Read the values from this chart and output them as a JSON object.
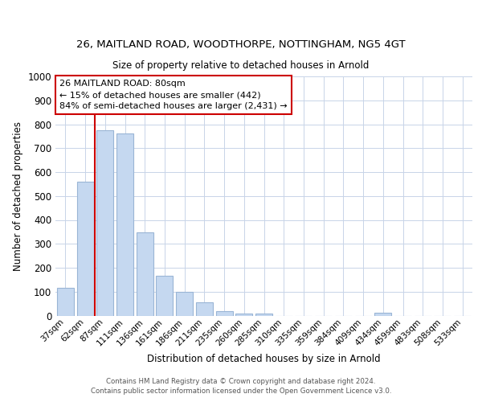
{
  "title": "26, MAITLAND ROAD, WOODTHORPE, NOTTINGHAM, NG5 4GT",
  "subtitle": "Size of property relative to detached houses in Arnold",
  "xlabel": "Distribution of detached houses by size in Arnold",
  "ylabel": "Number of detached properties",
  "bar_labels": [
    "37sqm",
    "62sqm",
    "87sqm",
    "111sqm",
    "136sqm",
    "161sqm",
    "186sqm",
    "211sqm",
    "235sqm",
    "260sqm",
    "285sqm",
    "310sqm",
    "335sqm",
    "359sqm",
    "384sqm",
    "409sqm",
    "434sqm",
    "459sqm",
    "483sqm",
    "508sqm",
    "533sqm"
  ],
  "bar_values": [
    115,
    560,
    775,
    760,
    348,
    165,
    98,
    55,
    18,
    10,
    8,
    0,
    0,
    0,
    0,
    0,
    12,
    0,
    0,
    0,
    0
  ],
  "bar_color": "#c5d8f0",
  "bar_edge_color": "#9ab5d5",
  "vline_color": "#cc0000",
  "annotation_text": "26 MAITLAND ROAD: 80sqm\n← 15% of detached houses are smaller (442)\n84% of semi-detached houses are larger (2,431) →",
  "annotation_box_color": "#ffffff",
  "annotation_box_edge_color": "#cc0000",
  "ylim": [
    0,
    1000
  ],
  "yticks": [
    0,
    100,
    200,
    300,
    400,
    500,
    600,
    700,
    800,
    900,
    1000
  ],
  "footer_line1": "Contains HM Land Registry data © Crown copyright and database right 2024.",
  "footer_line2": "Contains public sector information licensed under the Open Government Licence v3.0.",
  "background_color": "#ffffff",
  "grid_color": "#c8d4e8"
}
